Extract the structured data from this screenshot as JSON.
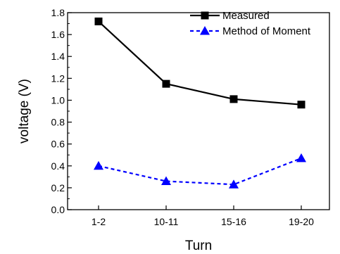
{
  "chart_data": {
    "type": "line",
    "title": "",
    "xlabel": "Turn",
    "ylabel": "voltage (V)",
    "categories": [
      "1-2",
      "10-11",
      "15-16",
      "19-20"
    ],
    "ylim": [
      0.0,
      1.8
    ],
    "yticks": [
      "0.0",
      "0.2",
      "0.4",
      "0.6",
      "0.8",
      "1.0",
      "1.2",
      "1.4",
      "1.6",
      "1.8"
    ],
    "legend_position": "top-right",
    "grid": false,
    "series": [
      {
        "name": "Measured",
        "values": [
          1.72,
          1.15,
          1.01,
          0.96
        ],
        "color": "#000000",
        "marker": "square",
        "line": "solid"
      },
      {
        "name": "Method of Moment",
        "values": [
          0.4,
          0.26,
          0.23,
          0.47
        ],
        "color": "#0000ff",
        "marker": "triangle",
        "line": "dashed"
      }
    ]
  }
}
